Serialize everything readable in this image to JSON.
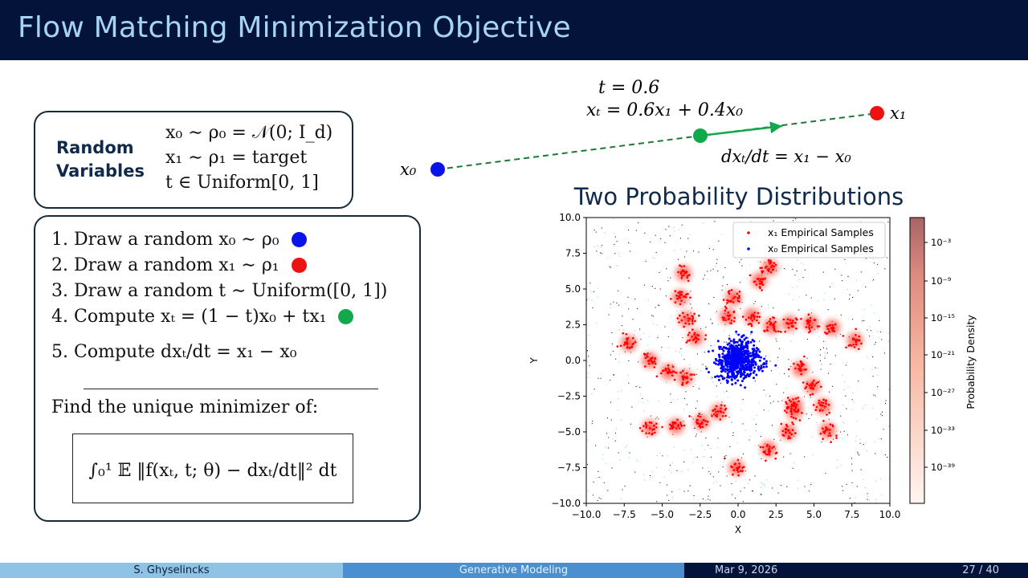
{
  "slide": {
    "title": "Flow Matching Minimization Objective"
  },
  "random_vars": {
    "label_line1": "Random",
    "label_line2": "Variables",
    "line1": "x₀ ∼ ρ₀ = 𝒩(0; I_d)",
    "line2": "x₁ ∼ ρ₁ = target",
    "line3": "t ∈ Uniform[0, 1]"
  },
  "steps": [
    {
      "num": "1.",
      "text": "Draw a random x₀ ∼ ρ₀"
    },
    {
      "num": "2.",
      "text": "Draw a random x₁ ∼ ρ₁"
    },
    {
      "num": "3.",
      "text": "Draw a random t ∼ Uniform([0, 1])"
    },
    {
      "num": "4.",
      "text": "Compute xₜ = (1 − t)x₀ + tx₁"
    },
    {
      "num": "5.",
      "text": "Compute dxₜ/dt = x₁ − x₀"
    }
  ],
  "find_text": "Find the unique minimizer of:",
  "objective": "∫₀¹ 𝔼 ‖f(xₜ, t; θ) − dxₜ/dt‖² dt",
  "interp": {
    "t_text": "t = 0.6",
    "xt_text": "xₜ = 0.6x₁ + 0.4x₀",
    "x0_label": "x₀",
    "x1_label": "x₁",
    "deriv_text": "dxₜ/dt = x₁ − x₀"
  },
  "colors": {
    "x0": "#0a14e8",
    "x1": "#ee1111",
    "xt": "#12a84c",
    "title_bg": "#04133a",
    "title_fg": "#a6d4f5"
  },
  "chart_data": {
    "type": "scatter",
    "title": "Two Probability Distributions",
    "xlabel": "X",
    "ylabel": "Y",
    "xlim": [
      -10.0,
      10.0
    ],
    "ylim": [
      -10.0,
      10.0
    ],
    "xticks": [
      "−10.0",
      "−7.5",
      "−5.0",
      "−2.5",
      "0.0",
      "2.5",
      "5.0",
      "7.5",
      "10.0"
    ],
    "yticks": [
      "10.0",
      "7.5",
      "5.0",
      "2.5",
      "0.0",
      "−2.5",
      "−5.0",
      "−7.5",
      "−10.0"
    ],
    "legend": [
      "x₁ Empirical Samples",
      "x₀ Empirical Samples"
    ],
    "legend_position": "top-right",
    "colorbar": {
      "label": "Probability Density",
      "scale": "log",
      "ticks": [
        "10⁻³",
        "10⁻⁹",
        "10⁻¹⁵",
        "10⁻²¹",
        "10⁻²⁷",
        "10⁻³³",
        "10⁻³⁹"
      ]
    },
    "series": [
      {
        "name": "x₁ Empirical Samples",
        "color": "#ff0000",
        "cluster_centers": [
          [
            -3.6,
            6.1
          ],
          [
            -3.8,
            4.4
          ],
          [
            -3.4,
            2.9
          ],
          [
            -2.8,
            1.6
          ],
          [
            -7.2,
            1.2
          ],
          [
            -5.8,
            0.0
          ],
          [
            -4.6,
            -0.8
          ],
          [
            -3.5,
            -1.2
          ],
          [
            -5.8,
            -4.7
          ],
          [
            -4.1,
            -4.6
          ],
          [
            -2.4,
            -4.3
          ],
          [
            -1.3,
            -3.6
          ],
          [
            -0.1,
            -7.5
          ],
          [
            2.0,
            -6.2
          ],
          [
            3.3,
            -5.0
          ],
          [
            3.7,
            -3.6
          ],
          [
            3.7,
            -3.1
          ],
          [
            4.1,
            -0.6
          ],
          [
            4.9,
            -1.8
          ],
          [
            5.6,
            -3.2
          ],
          [
            5.9,
            -4.9
          ],
          [
            2.1,
            6.5
          ],
          [
            1.4,
            5.6
          ],
          [
            -0.3,
            4.4
          ],
          [
            -0.7,
            3.1
          ],
          [
            0.9,
            3.1
          ],
          [
            2.2,
            2.4
          ],
          [
            3.4,
            2.6
          ],
          [
            4.8,
            2.6
          ],
          [
            6.2,
            2.3
          ],
          [
            7.7,
            1.4
          ]
        ]
      },
      {
        "name": "x₀ Empirical Samples",
        "color": "#0000ff",
        "center": [
          0.0,
          0.0
        ],
        "std": [
          0.7,
          0.6
        ]
      }
    ]
  },
  "footer": {
    "author": "S. Ghyselincks",
    "topic": "Generative Modeling",
    "date": "Mar 9, 2026",
    "page": "27 / 40"
  }
}
